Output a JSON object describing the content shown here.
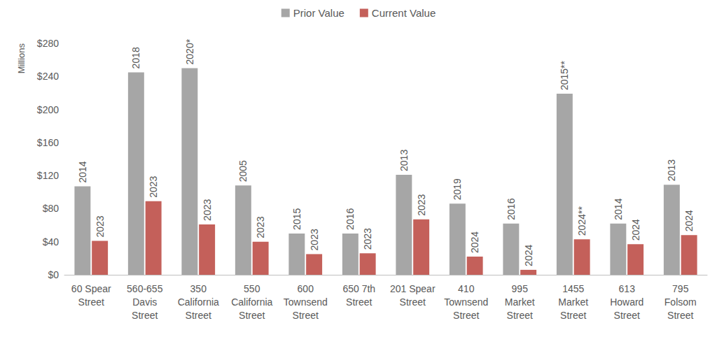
{
  "chart_data": {
    "type": "bar",
    "y_axis_label": "Millions",
    "categories": [
      "60 Spear\nStreet",
      "560-655\nDavis\nStreet",
      "350\nCalifornia\nStreet",
      "550\nCalifornia\nStreet",
      "600\nTownsend\nStreet",
      "650 7th\nStreet",
      "201 Spear\nStreet",
      "410\nTownsend\nStreet",
      "995\nMarket\nStreet",
      "1455\nMarket\nStreet",
      "613\nHoward\nStreet",
      "795\nFolsom\nStreet"
    ],
    "series": [
      {
        "name": "Prior Value",
        "color": "#a6a6a6",
        "values": [
          107,
          245,
          250,
          108,
          50,
          50,
          121,
          86,
          62,
          219,
          62,
          109
        ],
        "bar_labels": [
          "2014",
          "2018",
          "2020*",
          "2005",
          "2015",
          "2016",
          "2013",
          "2019",
          "2016",
          "2015**",
          "2014",
          "2013"
        ]
      },
      {
        "name": "Current Value",
        "color": "#c4605a",
        "values": [
          41,
          89,
          61,
          40,
          25,
          26,
          67,
          22,
          6,
          43,
          37,
          48
        ],
        "bar_labels": [
          "2023",
          "2023",
          "2023",
          "2023",
          "2023",
          "2023",
          "2023",
          "2024",
          "2024",
          "2024**",
          "2024",
          "2024"
        ]
      }
    ],
    "ylim": [
      0,
      280
    ],
    "yticks": [
      {
        "value": 0,
        "label": "$0"
      },
      {
        "value": 40,
        "label": "$40"
      },
      {
        "value": 80,
        "label": "$80"
      },
      {
        "value": 120,
        "label": "$120"
      },
      {
        "value": 160,
        "label": "$160"
      },
      {
        "value": 200,
        "label": "$200"
      },
      {
        "value": 240,
        "label": "$240"
      },
      {
        "value": 280,
        "label": "$280"
      }
    ],
    "grid": false,
    "legend": "top"
  }
}
